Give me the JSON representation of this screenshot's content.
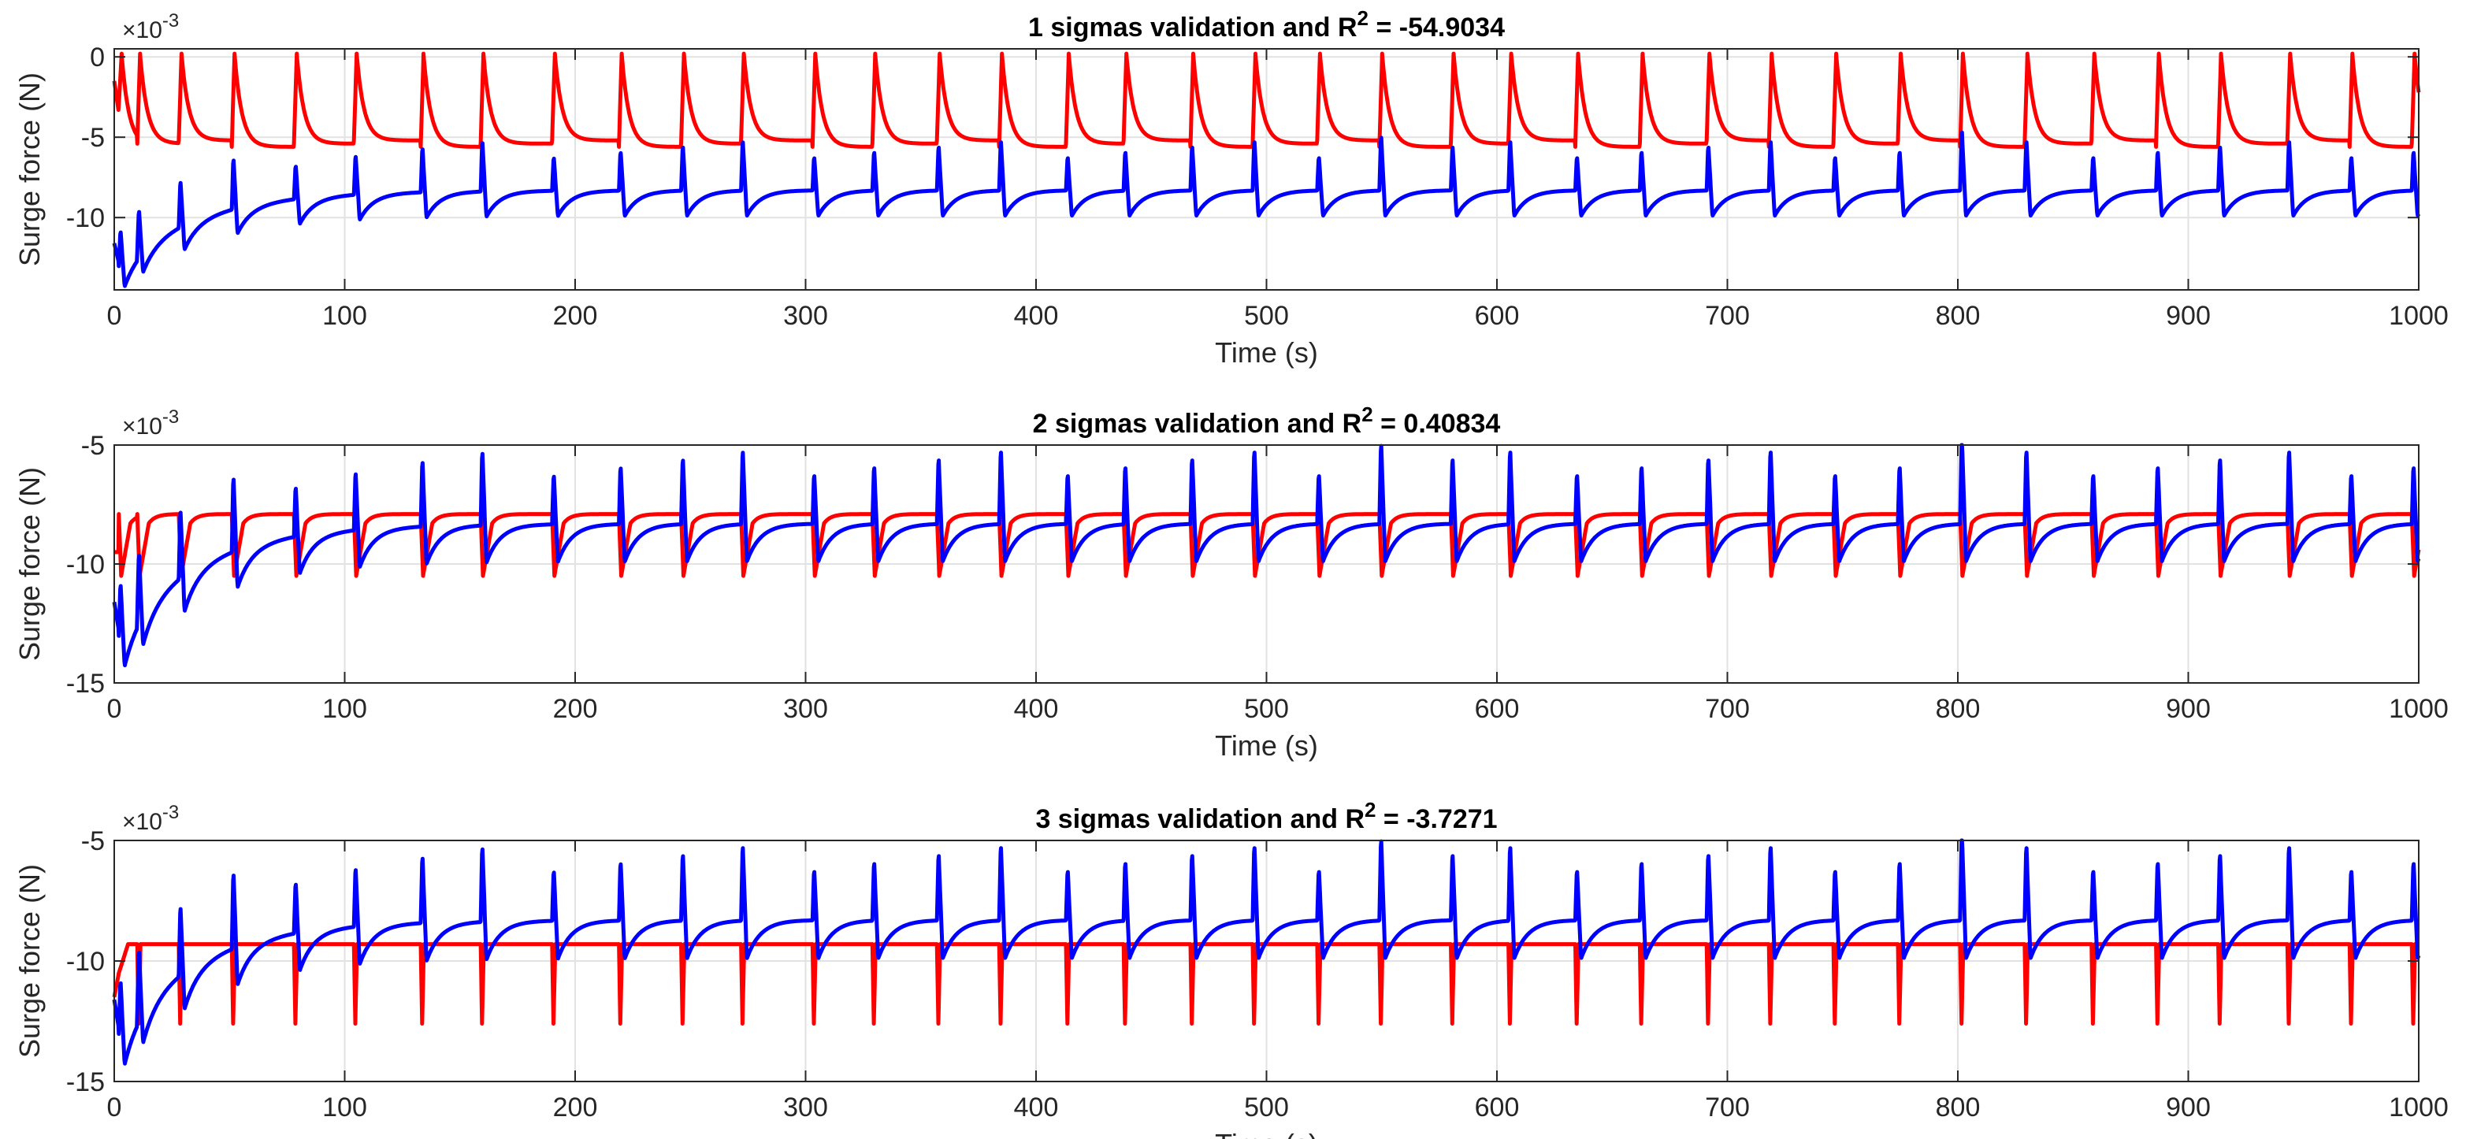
{
  "chart_data": [
    {
      "type": "line",
      "title_prefix": "1 sigmas validation and R",
      "title_sup": "2",
      "title_suffix": " = -54.9034",
      "xlabel": "Time (s)",
      "ylabel": "Surge force (N)",
      "exponent_base": "×10",
      "exponent_power": "-3",
      "xlim": [
        0,
        1000
      ],
      "ylim": [
        -14.5,
        0.5
      ],
      "xticks": [
        "0",
        "100",
        "200",
        "300",
        "400",
        "500",
        "600",
        "700",
        "800",
        "900",
        "1000"
      ],
      "yticks": [
        "0",
        "-5",
        "-10"
      ],
      "ytick_values": [
        0,
        -5,
        -10
      ],
      "series": [
        {
          "name": "red",
          "color": "#ff0000",
          "model": "red1"
        },
        {
          "name": "blue",
          "color": "#0000ff",
          "model": "blue"
        }
      ]
    },
    {
      "type": "line",
      "title_prefix": "2 sigmas validation and R",
      "title_sup": "2",
      "title_suffix": " = 0.40834",
      "xlabel": "Time (s)",
      "ylabel": "Surge force (N)",
      "exponent_base": "×10",
      "exponent_power": "-3",
      "xlim": [
        0,
        1000
      ],
      "ylim": [
        -15,
        -5
      ],
      "xticks": [
        "0",
        "100",
        "200",
        "300",
        "400",
        "500",
        "600",
        "700",
        "800",
        "900",
        "1000"
      ],
      "yticks": [
        "-5",
        "-10",
        "-15"
      ],
      "ytick_values": [
        -5,
        -10,
        -15
      ],
      "series": [
        {
          "name": "red",
          "color": "#ff0000",
          "model": "red2"
        },
        {
          "name": "blue",
          "color": "#0000ff",
          "model": "blue"
        }
      ]
    },
    {
      "type": "line",
      "title_prefix": "3 sigmas validation and R",
      "title_sup": "2",
      "title_suffix": " = -3.7271",
      "xlabel": "Time (s)",
      "ylabel": "Surge force (N)",
      "exponent_base": "×10",
      "exponent_power": "-3",
      "xlim": [
        0,
        1000
      ],
      "ylim": [
        -15,
        -5
      ],
      "xticks": [
        "0",
        "100",
        "200",
        "300",
        "400",
        "500",
        "600",
        "700",
        "800",
        "900",
        "1000"
      ],
      "yticks": [
        "-5",
        "-10",
        "-15"
      ],
      "ytick_values": [
        -5,
        -10,
        -15
      ],
      "series": [
        {
          "name": "red",
          "color": "#ff0000",
          "model": "red3"
        },
        {
          "name": "blue",
          "color": "#0000ff",
          "model": "blue"
        }
      ]
    }
  ],
  "pulse_times_s": [
    2,
    10,
    28,
    51,
    78,
    104,
    133,
    159,
    190,
    219,
    246,
    272,
    303,
    329,
    357,
    384,
    413,
    438,
    467,
    494,
    522,
    549,
    580,
    605,
    634,
    662,
    691,
    718,
    746,
    774,
    801,
    829,
    858,
    886,
    913,
    943,
    970,
    997
  ]
}
